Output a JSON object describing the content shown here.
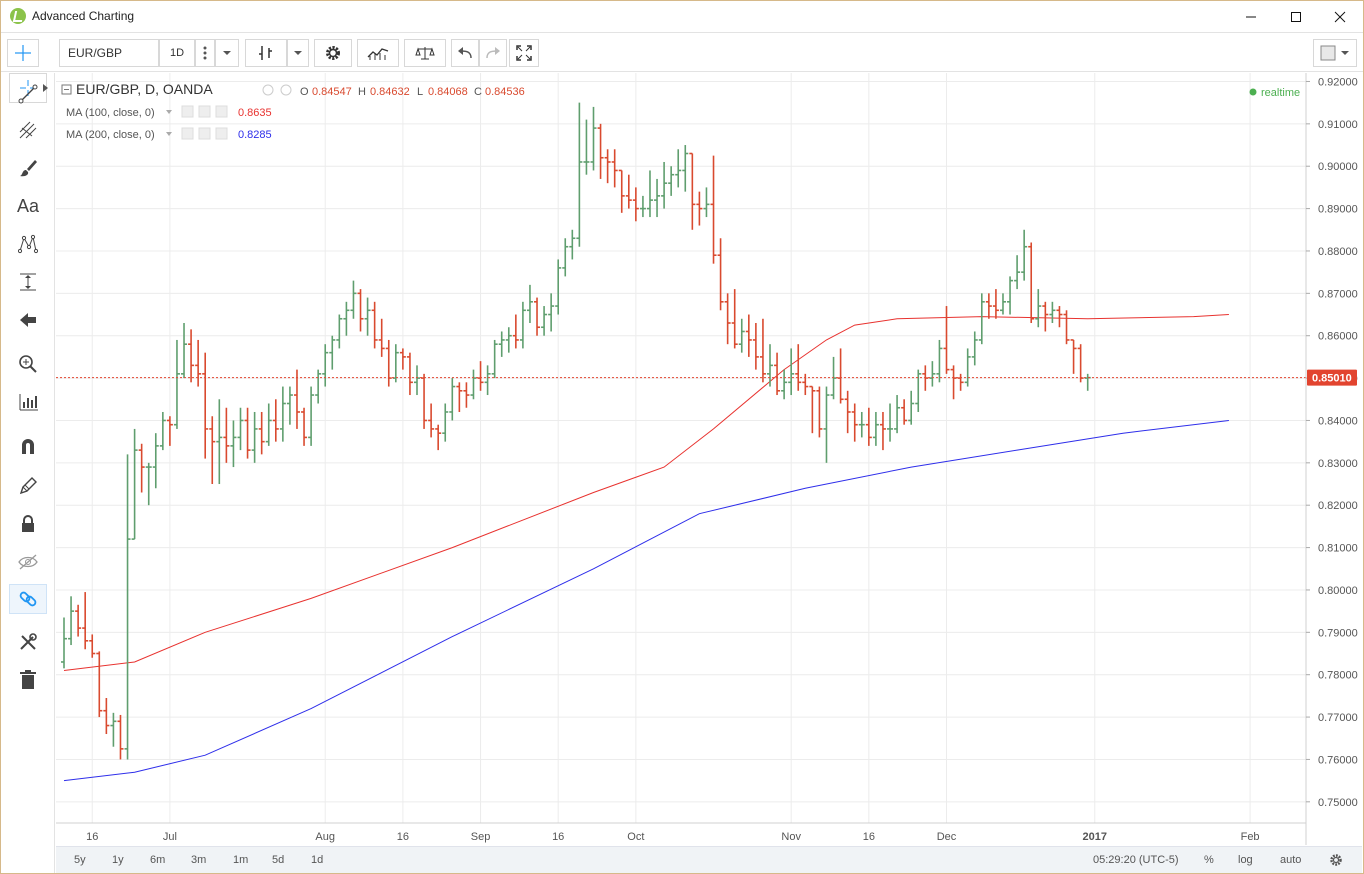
{
  "window": {
    "title": "Advanced Charting",
    "min_icon": "minimize-icon",
    "max_icon": "maximize-icon",
    "close_icon": "close-icon"
  },
  "toolbar": {
    "symbol": "EUR/GBP",
    "interval": "1D",
    "icons": [
      "more-vertical-icon",
      "chevron-down-icon",
      "bar-style-icon",
      "chevron-down-icon",
      "gear-icon",
      "indicators-icon",
      "compare-icon",
      "undo-icon",
      "redo-icon",
      "fullscreen-icon",
      "layout-square-icon"
    ]
  },
  "left_tools": [
    "crosshair-icon",
    "trend-line-icon",
    "pitchfork-icon",
    "brush-icon",
    "text-icon",
    "pattern-icon",
    "measure-icon",
    "arrow-left-icon",
    "zoom-icon",
    "magnet-chart-icon",
    "magnet-icon",
    "pencil-icon",
    "lock-icon",
    "eye-off-icon",
    "link-icon",
    "tools-icon",
    "trash-icon"
  ],
  "left_tools_text": {
    "text_tool": "Aa"
  },
  "legend": {
    "main": "EUR/GBP, D, OANDA",
    "ohlc": {
      "o_label": "O",
      "o": "0.84547",
      "h_label": "H",
      "h": "0.84632",
      "l_label": "L",
      "l": "0.84068",
      "c_label": "C",
      "c": "0.84536"
    },
    "ma100": {
      "label": "MA (100, close, 0)",
      "value": "0.8635"
    },
    "ma200": {
      "label": "MA (200, close, 0)",
      "value": "0.8285"
    },
    "realtime": "realtime"
  },
  "colors": {
    "up": "#5f9e6e",
    "down": "#d94a2f",
    "ma100": "#e8322f",
    "ma200": "#2e2eea",
    "price_label": "#e2442f",
    "realtime": "#4caf50"
  },
  "bottom": {
    "ranges": [
      "5y",
      "1y",
      "6m",
      "3m",
      "1m",
      "5d",
      "1d"
    ],
    "clock": "05:29:20 (UTC-5)",
    "pct": "%",
    "log": "log",
    "auto": "auto",
    "settings_icon": "gear-icon"
  },
  "chart_data": {
    "type": "ohlc-bar",
    "symbol": "EUR/GBP",
    "interval": "D",
    "source": "OANDA",
    "ylim": [
      0.745,
      0.922
    ],
    "yticks": [
      0.92,
      0.91,
      0.9,
      0.89,
      0.88,
      0.87,
      0.86,
      0.85,
      0.84,
      0.83,
      0.82,
      0.81,
      0.8,
      0.79,
      0.78,
      0.77,
      0.76,
      0.75
    ],
    "ytick_labels": [
      "0.92000",
      "0.91000",
      "0.90000",
      "0.89000",
      "0.88000",
      "0.87000",
      "0.86000",
      "0.85000",
      "0.84000",
      "0.83000",
      "0.82000",
      "0.81000",
      "0.80000",
      "0.79000",
      "0.78000",
      "0.77000",
      "0.76000",
      "0.75000"
    ],
    "xticks": [
      {
        "label": "16",
        "idx": 4
      },
      {
        "label": "Jul",
        "idx": 15
      },
      {
        "label": "Aug",
        "idx": 37
      },
      {
        "label": "16",
        "idx": 48
      },
      {
        "label": "Sep",
        "idx": 59
      },
      {
        "label": "16",
        "idx": 70
      },
      {
        "label": "Oct",
        "idx": 81
      },
      {
        "label": "Nov",
        "idx": 103
      },
      {
        "label": "16",
        "idx": 114
      },
      {
        "label": "Dec",
        "idx": 125
      },
      {
        "label": "2017",
        "idx": 146,
        "bold": true
      },
      {
        "label": "Feb",
        "idx": 168
      }
    ],
    "last_price": 0.8501,
    "last_price_label": "0.85010",
    "bars": [
      [
        0.783,
        0.7935,
        0.7815,
        0.7885
      ],
      [
        0.7885,
        0.7985,
        0.787,
        0.795
      ],
      [
        0.795,
        0.7965,
        0.789,
        0.791
      ],
      [
        0.791,
        0.7995,
        0.786,
        0.788
      ],
      [
        0.788,
        0.7895,
        0.784,
        0.785
      ],
      [
        0.785,
        0.7855,
        0.77,
        0.7715
      ],
      [
        0.7715,
        0.7745,
        0.766,
        0.768
      ],
      [
        0.768,
        0.771,
        0.763,
        0.769
      ],
      [
        0.769,
        0.7705,
        0.76,
        0.7625
      ],
      [
        0.7625,
        0.832,
        0.76,
        0.812
      ],
      [
        0.812,
        0.838,
        0.812,
        0.833
      ],
      [
        0.833,
        0.8345,
        0.823,
        0.829
      ],
      [
        0.829,
        0.83,
        0.82,
        0.829
      ],
      [
        0.829,
        0.837,
        0.824,
        0.834
      ],
      [
        0.834,
        0.842,
        0.833,
        0.84
      ],
      [
        0.84,
        0.841,
        0.834,
        0.839
      ],
      [
        0.839,
        0.859,
        0.838,
        0.851
      ],
      [
        0.851,
        0.863,
        0.85,
        0.858
      ],
      [
        0.858,
        0.8615,
        0.849,
        0.853
      ],
      [
        0.853,
        0.859,
        0.848,
        0.851
      ],
      [
        0.851,
        0.856,
        0.831,
        0.838
      ],
      [
        0.838,
        0.841,
        0.825,
        0.835
      ],
      [
        0.835,
        0.845,
        0.825,
        0.836
      ],
      [
        0.836,
        0.843,
        0.83,
        0.834
      ],
      [
        0.834,
        0.84,
        0.829,
        0.836
      ],
      [
        0.836,
        0.843,
        0.833,
        0.84
      ],
      [
        0.84,
        0.843,
        0.831,
        0.833
      ],
      [
        0.833,
        0.842,
        0.83,
        0.838
      ],
      [
        0.838,
        0.842,
        0.832,
        0.835
      ],
      [
        0.835,
        0.844,
        0.834,
        0.84
      ],
      [
        0.84,
        0.845,
        0.835,
        0.838
      ],
      [
        0.838,
        0.848,
        0.835,
        0.844
      ],
      [
        0.844,
        0.848,
        0.839,
        0.846
      ],
      [
        0.846,
        0.852,
        0.838,
        0.842
      ],
      [
        0.842,
        0.843,
        0.834,
        0.836
      ],
      [
        0.836,
        0.848,
        0.834,
        0.846
      ],
      [
        0.846,
        0.852,
        0.844,
        0.851
      ],
      [
        0.851,
        0.858,
        0.848,
        0.856
      ],
      [
        0.856,
        0.86,
        0.852,
        0.859
      ],
      [
        0.859,
        0.865,
        0.857,
        0.864
      ],
      [
        0.864,
        0.868,
        0.86,
        0.866
      ],
      [
        0.866,
        0.873,
        0.864,
        0.87
      ],
      [
        0.87,
        0.871,
        0.861,
        0.864
      ],
      [
        0.864,
        0.869,
        0.86,
        0.866
      ],
      [
        0.866,
        0.868,
        0.857,
        0.859
      ],
      [
        0.859,
        0.864,
        0.855,
        0.857
      ],
      [
        0.857,
        0.859,
        0.848,
        0.85
      ],
      [
        0.85,
        0.858,
        0.849,
        0.856
      ],
      [
        0.856,
        0.857,
        0.852,
        0.855
      ],
      [
        0.855,
        0.856,
        0.846,
        0.849
      ],
      [
        0.849,
        0.853,
        0.846,
        0.85
      ],
      [
        0.85,
        0.851,
        0.838,
        0.84
      ],
      [
        0.84,
        0.844,
        0.836,
        0.838
      ],
      [
        0.838,
        0.839,
        0.833,
        0.837
      ],
      [
        0.837,
        0.844,
        0.835,
        0.842
      ],
      [
        0.842,
        0.85,
        0.84,
        0.848
      ],
      [
        0.848,
        0.849,
        0.842,
        0.847
      ],
      [
        0.847,
        0.849,
        0.843,
        0.846
      ],
      [
        0.846,
        0.852,
        0.845,
        0.85
      ],
      [
        0.85,
        0.854,
        0.847,
        0.849
      ],
      [
        0.849,
        0.853,
        0.846,
        0.851
      ],
      [
        0.851,
        0.859,
        0.85,
        0.858
      ],
      [
        0.858,
        0.861,
        0.855,
        0.859
      ],
      [
        0.859,
        0.862,
        0.856,
        0.86
      ],
      [
        0.86,
        0.865,
        0.857,
        0.859
      ],
      [
        0.859,
        0.868,
        0.857,
        0.866
      ],
      [
        0.866,
        0.872,
        0.863,
        0.868
      ],
      [
        0.868,
        0.869,
        0.86,
        0.862
      ],
      [
        0.862,
        0.867,
        0.86,
        0.865
      ],
      [
        0.865,
        0.87,
        0.861,
        0.867
      ],
      [
        0.867,
        0.878,
        0.865,
        0.876
      ],
      [
        0.876,
        0.883,
        0.874,
        0.881
      ],
      [
        0.881,
        0.885,
        0.878,
        0.883
      ],
      [
        0.883,
        0.915,
        0.881,
        0.901
      ],
      [
        0.901,
        0.911,
        0.898,
        0.901
      ],
      [
        0.901,
        0.914,
        0.899,
        0.909
      ],
      [
        0.909,
        0.91,
        0.897,
        0.902
      ],
      [
        0.902,
        0.904,
        0.896,
        0.901
      ],
      [
        0.901,
        0.904,
        0.895,
        0.899
      ],
      [
        0.899,
        0.899,
        0.889,
        0.893
      ],
      [
        0.893,
        0.898,
        0.89,
        0.892
      ],
      [
        0.892,
        0.895,
        0.887,
        0.89
      ],
      [
        0.89,
        0.893,
        0.888,
        0.89
      ],
      [
        0.89,
        0.899,
        0.888,
        0.892
      ],
      [
        0.892,
        0.897,
        0.888,
        0.893
      ],
      [
        0.893,
        0.901,
        0.89,
        0.896
      ],
      [
        0.896,
        0.9,
        0.893,
        0.898
      ],
      [
        0.898,
        0.904,
        0.895,
        0.899
      ],
      [
        0.899,
        0.905,
        0.894,
        0.903
      ],
      [
        0.903,
        0.903,
        0.885,
        0.891
      ],
      [
        0.891,
        0.894,
        0.886,
        0.89
      ],
      [
        0.89,
        0.895,
        0.888,
        0.891
      ],
      [
        0.891,
        0.9025,
        0.877,
        0.879
      ],
      [
        0.879,
        0.883,
        0.866,
        0.868
      ],
      [
        0.868,
        0.87,
        0.858,
        0.863
      ],
      [
        0.863,
        0.871,
        0.857,
        0.858
      ],
      [
        0.858,
        0.864,
        0.856,
        0.861
      ],
      [
        0.861,
        0.865,
        0.855,
        0.859
      ],
      [
        0.859,
        0.863,
        0.852,
        0.855
      ],
      [
        0.855,
        0.864,
        0.849,
        0.851
      ],
      [
        0.851,
        0.858,
        0.848,
        0.853
      ],
      [
        0.853,
        0.856,
        0.846,
        0.847
      ],
      [
        0.847,
        0.852,
        0.845,
        0.849
      ],
      [
        0.849,
        0.857,
        0.846,
        0.851
      ],
      [
        0.851,
        0.858,
        0.847,
        0.849
      ],
      [
        0.849,
        0.851,
        0.846,
        0.848
      ],
      [
        0.848,
        0.848,
        0.837,
        0.847
      ],
      [
        0.847,
        0.848,
        0.836,
        0.838
      ],
      [
        0.838,
        0.848,
        0.83,
        0.846
      ],
      [
        0.846,
        0.855,
        0.845,
        0.85
      ],
      [
        0.85,
        0.857,
        0.844,
        0.845
      ],
      [
        0.845,
        0.847,
        0.837,
        0.842
      ],
      [
        0.842,
        0.844,
        0.835,
        0.839
      ],
      [
        0.839,
        0.842,
        0.836,
        0.839
      ],
      [
        0.839,
        0.843,
        0.834,
        0.836
      ],
      [
        0.836,
        0.842,
        0.834,
        0.839
      ],
      [
        0.839,
        0.842,
        0.833,
        0.838
      ],
      [
        0.838,
        0.844,
        0.835,
        0.838
      ],
      [
        0.838,
        0.846,
        0.837,
        0.843
      ],
      [
        0.843,
        0.845,
        0.839,
        0.84
      ],
      [
        0.84,
        0.847,
        0.839,
        0.844
      ],
      [
        0.844,
        0.852,
        0.842,
        0.851
      ],
      [
        0.851,
        0.853,
        0.847,
        0.85
      ],
      [
        0.85,
        0.854,
        0.848,
        0.851
      ],
      [
        0.851,
        0.859,
        0.849,
        0.857
      ],
      [
        0.857,
        0.867,
        0.851,
        0.852
      ],
      [
        0.852,
        0.853,
        0.845,
        0.85
      ],
      [
        0.85,
        0.851,
        0.847,
        0.849
      ],
      [
        0.849,
        0.857,
        0.848,
        0.855
      ],
      [
        0.855,
        0.861,
        0.853,
        0.859
      ],
      [
        0.859,
        0.87,
        0.858,
        0.868
      ],
      [
        0.868,
        0.87,
        0.864,
        0.867
      ],
      [
        0.867,
        0.871,
        0.864,
        0.866
      ],
      [
        0.866,
        0.87,
        0.865,
        0.868
      ],
      [
        0.868,
        0.874,
        0.865,
        0.873
      ],
      [
        0.873,
        0.879,
        0.871,
        0.875
      ],
      [
        0.875,
        0.885,
        0.873,
        0.881
      ],
      [
        0.881,
        0.882,
        0.863,
        0.864
      ],
      [
        0.864,
        0.871,
        0.862,
        0.867
      ],
      [
        0.867,
        0.868,
        0.861,
        0.865
      ],
      [
        0.865,
        0.868,
        0.863,
        0.866
      ],
      [
        0.866,
        0.867,
        0.862,
        0.865
      ],
      [
        0.865,
        0.866,
        0.858,
        0.859
      ],
      [
        0.859,
        0.859,
        0.851,
        0.857
      ],
      [
        0.857,
        0.858,
        0.849,
        0.85
      ],
      [
        0.85,
        0.851,
        0.847,
        0.8501
      ]
    ],
    "ma100": [
      [
        0,
        0.781
      ],
      [
        10,
        0.783
      ],
      [
        20,
        0.79
      ],
      [
        35,
        0.798
      ],
      [
        55,
        0.81
      ],
      [
        75,
        0.823
      ],
      [
        85,
        0.829
      ],
      [
        92,
        0.838
      ],
      [
        102,
        0.852
      ],
      [
        108,
        0.859
      ],
      [
        112,
        0.8625
      ],
      [
        118,
        0.864
      ],
      [
        130,
        0.8645
      ],
      [
        145,
        0.864
      ],
      [
        160,
        0.8645
      ],
      [
        165,
        0.865
      ]
    ],
    "ma200": [
      [
        0,
        0.755
      ],
      [
        10,
        0.757
      ],
      [
        20,
        0.761
      ],
      [
        35,
        0.772
      ],
      [
        55,
        0.789
      ],
      [
        75,
        0.805
      ],
      [
        90,
        0.818
      ],
      [
        105,
        0.824
      ],
      [
        120,
        0.829
      ],
      [
        135,
        0.833
      ],
      [
        150,
        0.837
      ],
      [
        165,
        0.84
      ]
    ]
  }
}
